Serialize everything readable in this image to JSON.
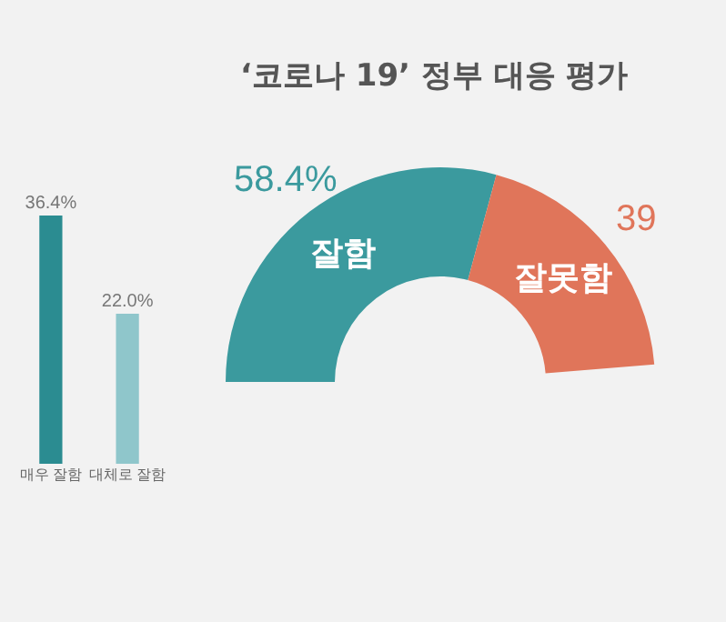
{
  "chart_data": [
    {
      "type": "bar",
      "categories": [
        "매우 잘함",
        "대체로 잘함"
      ],
      "values": [
        36.4,
        22.0
      ],
      "colors": [
        "#2b8c91",
        "#8fc6cb"
      ],
      "value_labels": [
        "36.4%",
        "22.0%"
      ],
      "data_labels": true
    },
    {
      "type": "donut",
      "title": "‘코로나 19’ 정부 대응 평가",
      "categories": [
        "잘함",
        "잘못함"
      ],
      "values": [
        58.4,
        39
      ],
      "colors": [
        "#3b9a9e",
        "#e0755a"
      ],
      "value_labels": [
        "58.4%",
        "39"
      ]
    }
  ]
}
